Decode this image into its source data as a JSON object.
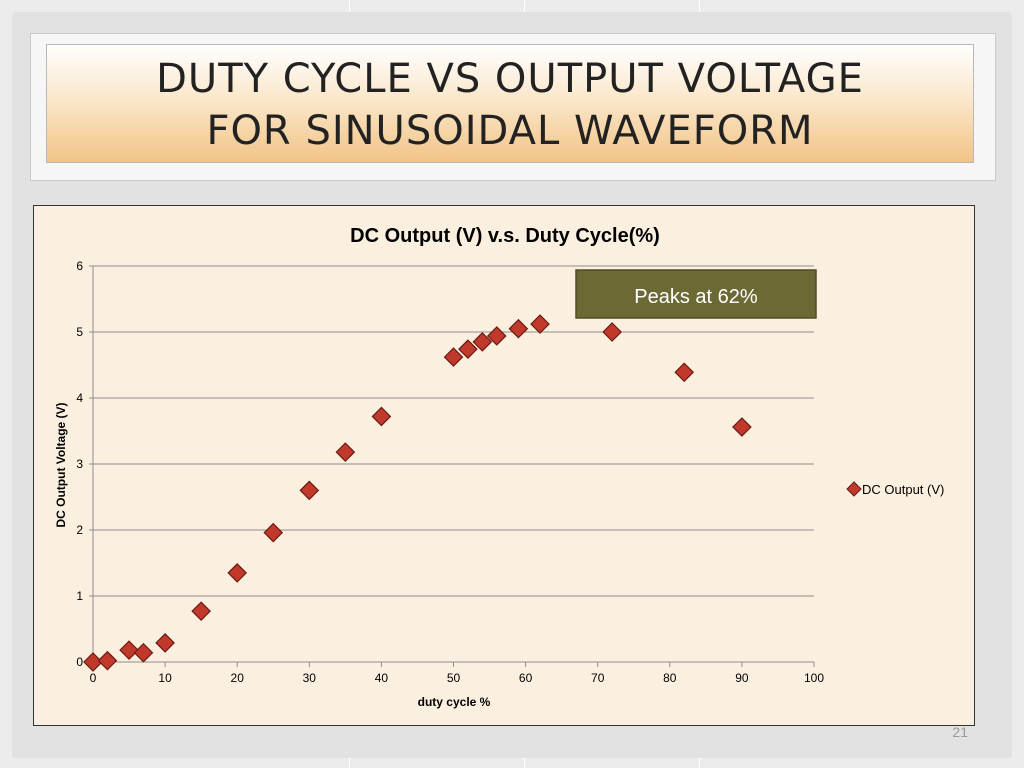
{
  "slide": {
    "title_line1": "DUTY CYCLE VS OUTPUT VOLTAGE",
    "title_line2": "FOR SINUSOIDAL WAVEFORM",
    "page_number": "21"
  },
  "chart_data": {
    "type": "scatter",
    "title": "DC Output (V) v.s. Duty Cycle(%)",
    "xlabel": "duty cycle %",
    "ylabel": "DC Output Voltage (V)",
    "xlim": [
      0,
      100
    ],
    "ylim": [
      0,
      6
    ],
    "xticks": [
      "0",
      "10",
      "20",
      "30",
      "40",
      "50",
      "60",
      "70",
      "80",
      "90",
      "100"
    ],
    "yticks": [
      "0",
      "1",
      "2",
      "3",
      "4",
      "5",
      "6"
    ],
    "grid": "horizontal",
    "legend_position": "right",
    "series": [
      {
        "name": "DC Output (V)",
        "marker": "diamond",
        "color": "#c0392b",
        "x": [
          0,
          2,
          5,
          7,
          10,
          15,
          20,
          25,
          30,
          35,
          40,
          50,
          52,
          54,
          56,
          59,
          62,
          72,
          82,
          90
        ],
        "y": [
          0.0,
          0.02,
          0.18,
          0.14,
          0.29,
          0.77,
          1.35,
          1.96,
          2.6,
          3.18,
          3.72,
          4.62,
          4.74,
          4.85,
          4.94,
          5.05,
          5.12,
          5.0,
          4.39,
          3.56
        ]
      }
    ],
    "annotation": {
      "text": "Peaks at 62%",
      "x": 62,
      "y": 5.12,
      "color": "#6b6a35"
    }
  }
}
